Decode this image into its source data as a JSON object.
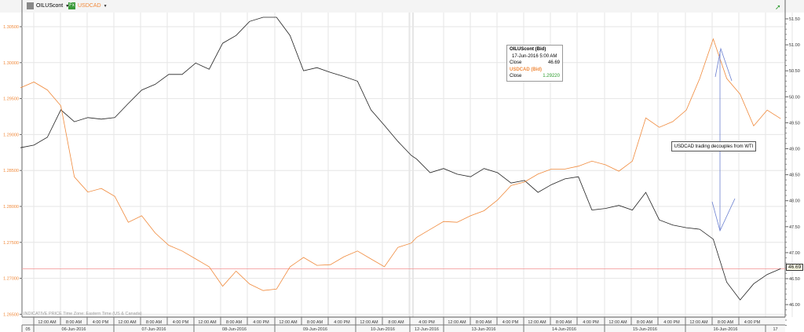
{
  "header": {
    "series1_label": "OILUScont",
    "series2_label": "USDCAD",
    "series1_icon": "chart-icon",
    "series2_icon": "fx-icon",
    "series2_icon_text": "Fx"
  },
  "tooltip": {
    "title1": "OILUScont (Bid)",
    "date": "17-Jun-2016 5:00 AM",
    "close_label1": "Close",
    "close_value1": "46.69",
    "title2": "USDCAD (Bid)",
    "close_label2": "Close",
    "close_value2": "1.29220"
  },
  "annotation": "USDCAD trading decouples from WTI",
  "footer_note": "INDICATIVE PRICE   Time Zone: Eastern Time (US & Canada)",
  "last_value_label": "46.69",
  "colors": {
    "oil": "#222222",
    "usdcad": "#f08a3c",
    "arrow": "#6a7fd0",
    "ref_line": "#f4a0a0",
    "grid": "#e6e6e6"
  },
  "chart_data": {
    "type": "line",
    "title": "",
    "x": [
      "05-Jun-2016 20:00",
      "06-Jun-2016 00:00",
      "06-Jun-2016 04:00",
      "06-Jun-2016 08:00",
      "06-Jun-2016 12:00",
      "06-Jun-2016 16:00",
      "06-Jun-2016 20:00",
      "07-Jun-2016 00:00",
      "07-Jun-2016 04:00",
      "07-Jun-2016 08:00",
      "07-Jun-2016 12:00",
      "07-Jun-2016 16:00",
      "07-Jun-2016 20:00",
      "08-Jun-2016 00:00",
      "08-Jun-2016 04:00",
      "08-Jun-2016 08:00",
      "08-Jun-2016 12:00",
      "08-Jun-2016 16:00",
      "08-Jun-2016 20:00",
      "09-Jun-2016 00:00",
      "09-Jun-2016 04:00",
      "09-Jun-2016 08:00",
      "09-Jun-2016 12:00",
      "09-Jun-2016 16:00",
      "09-Jun-2016 20:00",
      "10-Jun-2016 00:00",
      "10-Jun-2016 04:00",
      "10-Jun-2016 08:00",
      "10-Jun-2016 12:00",
      "10-Jun-2016 16:00",
      "12-Jun-2016 16:00",
      "12-Jun-2016 20:00",
      "13-Jun-2016 00:00",
      "13-Jun-2016 04:00",
      "13-Jun-2016 08:00",
      "13-Jun-2016 12:00",
      "13-Jun-2016 16:00",
      "13-Jun-2016 20:00",
      "14-Jun-2016 00:00",
      "14-Jun-2016 04:00",
      "14-Jun-2016 08:00",
      "14-Jun-2016 12:00",
      "14-Jun-2016 16:00",
      "14-Jun-2016 20:00",
      "15-Jun-2016 00:00",
      "15-Jun-2016 04:00",
      "15-Jun-2016 08:00",
      "15-Jun-2016 12:00",
      "15-Jun-2016 16:00",
      "15-Jun-2016 20:00",
      "16-Jun-2016 00:00",
      "16-Jun-2016 04:00",
      "16-Jun-2016 08:00",
      "16-Jun-2016 12:00",
      "16-Jun-2016 16:00",
      "16-Jun-2016 20:00",
      "17-Jun-2016 00:00",
      "17-Jun-2016 04:00"
    ],
    "series": [
      {
        "name": "OILUScont",
        "axis": "right",
        "color": "#222222",
        "values": [
          49.02,
          49.07,
          49.22,
          49.75,
          49.52,
          49.6,
          49.57,
          49.6,
          49.87,
          50.13,
          50.24,
          50.43,
          50.43,
          50.65,
          50.53,
          51.03,
          51.18,
          51.45,
          51.53,
          51.53,
          51.18,
          50.5,
          50.56,
          50.47,
          50.39,
          50.3,
          49.75,
          49.45,
          49.14,
          48.87,
          48.8,
          48.54,
          48.62,
          48.51,
          48.46,
          48.62,
          48.54,
          48.34,
          48.39,
          48.16,
          48.31,
          48.42,
          48.46,
          47.82,
          47.85,
          47.91,
          47.82,
          48.16,
          47.63,
          47.53,
          47.48,
          47.45,
          47.26,
          46.43,
          46.09,
          46.4,
          46.58,
          46.69
        ]
      },
      {
        "name": "USDCAD",
        "axis": "left",
        "color": "#f08a3c",
        "values": [
          1.2965,
          1.2973,
          1.2962,
          1.294,
          1.2841,
          1.282,
          1.2825,
          1.2814,
          1.2778,
          1.2787,
          1.2763,
          1.2746,
          1.2738,
          1.2727,
          1.2716,
          1.2689,
          1.271,
          1.2692,
          1.2683,
          1.2685,
          1.2716,
          1.2729,
          1.2718,
          1.2719,
          1.273,
          1.2738,
          1.2727,
          1.2716,
          1.2743,
          1.2749,
          1.2757,
          1.2768,
          1.2779,
          1.2778,
          1.2787,
          1.2794,
          1.2809,
          1.2829,
          1.2834,
          1.2845,
          1.2852,
          1.2852,
          1.2856,
          1.2863,
          1.2858,
          1.2849,
          1.2863,
          1.2923,
          1.291,
          1.2918,
          1.2934,
          1.2978,
          1.3033,
          1.2978,
          1.2956,
          1.2912,
          1.2934,
          1.2922
        ]
      }
    ],
    "left_axis": {
      "ticks": [
        "1.26500",
        "1.27000",
        "1.27500",
        "1.28000",
        "1.28500",
        "1.29000",
        "1.29500",
        "1.30000",
        "1.30500"
      ],
      "range": [
        1.265,
        1.3075
      ]
    },
    "right_axis": {
      "ticks": [
        "46.00",
        "46.50",
        "47.00",
        "47.50",
        "48.00",
        "48.50",
        "49.00",
        "49.50",
        "50.00",
        "50.50",
        "51.00",
        "51.50"
      ],
      "range": [
        45.8,
        51.8
      ]
    },
    "reference_line": 46.69,
    "time_ticks": [
      "12:00 AM",
      "8:00 AM",
      "4:00 PM",
      "12:00 AM",
      "8:00 AM",
      "4:00 PM",
      "12:00 AM",
      "8:00 AM",
      "4:00 PM",
      "12:00 AM",
      "8:00 AM",
      "4:00 PM",
      "12:00 AM",
      "8:00 AM",
      "4:00 PM",
      "12:00 AM",
      "8:00 AM",
      "4:00 PM",
      "12:00 AM",
      "8:00 AM",
      "4:00 PM",
      "12:00 AM",
      "8:00 AM",
      "4:00 PM",
      "12:00 AM",
      "8:00 AM",
      "4:00 PM"
    ],
    "date_labels": [
      "05",
      "06-Jun-2016",
      "07-Jun-2016",
      "08-Jun-2016",
      "09-Jun-2016",
      "10-Jun-2016",
      "12-Jun-2016",
      "13-Jun-2016",
      "14-Jun-2016",
      "15-Jun-2016",
      "16-Jun-2016",
      "17"
    ],
    "grid": true,
    "legend": "top-left"
  }
}
